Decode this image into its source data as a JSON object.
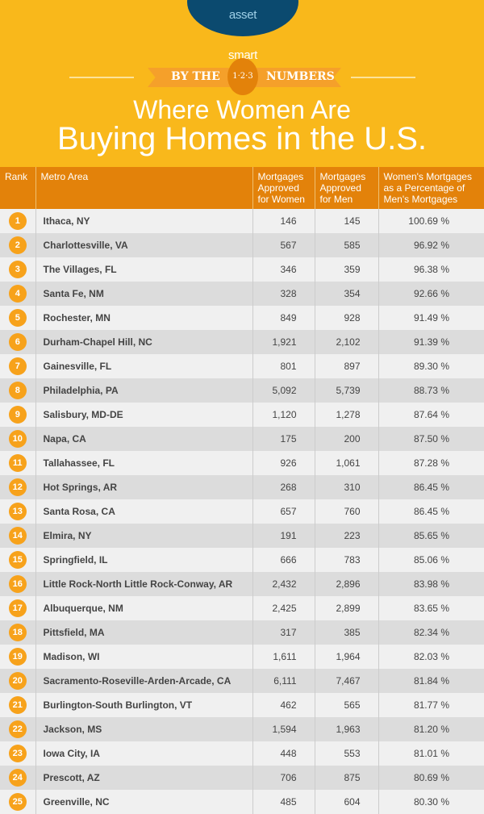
{
  "logo": {
    "text_a": "smart",
    "text_b": "asset"
  },
  "banner": {
    "left": "BY THE",
    "badge": "1·2·3",
    "right": "NUMBERS"
  },
  "title": {
    "line1": "Where Women Are",
    "line2": "Buying Homes in the U.S."
  },
  "colors": {
    "yellow": "#f9b81b",
    "header_orange": "#e3820a",
    "rank_circle": "#f7a21b",
    "logo_blue": "#0b4a6f"
  },
  "table": {
    "headers": [
      "Rank",
      "Metro Area",
      "Mortgages Approved for Women",
      "Mortgages Approved for Men",
      "Women's Mortgages as a Percentage of Men's Mortgages"
    ],
    "rows": [
      [
        "1",
        "Ithaca, NY",
        "146",
        "145",
        "100.69 %"
      ],
      [
        "2",
        "Charlottesville, VA",
        "567",
        "585",
        "96.92 %"
      ],
      [
        "3",
        "The Villages, FL",
        "346",
        "359",
        "96.38 %"
      ],
      [
        "4",
        "Santa Fe, NM",
        "328",
        "354",
        "92.66 %"
      ],
      [
        "5",
        "Rochester, MN",
        "849",
        "928",
        "91.49 %"
      ],
      [
        "6",
        "Durham-Chapel Hill, NC",
        "1,921",
        "2,102",
        "91.39 %"
      ],
      [
        "7",
        "Gainesville, FL",
        "801",
        "897",
        "89.30 %"
      ],
      [
        "8",
        "Philadelphia, PA",
        "5,092",
        "5,739",
        "88.73 %"
      ],
      [
        "9",
        "Salisbury, MD-DE",
        "1,120",
        "1,278",
        "87.64 %"
      ],
      [
        "10",
        "Napa, CA",
        "175",
        "200",
        "87.50 %"
      ],
      [
        "11",
        "Tallahassee, FL",
        "926",
        "1,061",
        "87.28 %"
      ],
      [
        "12",
        "Hot Springs, AR",
        "268",
        "310",
        "86.45 %"
      ],
      [
        "13",
        "Santa Rosa, CA",
        "657",
        "760",
        "86.45 %"
      ],
      [
        "14",
        "Elmira, NY",
        "191",
        "223",
        "85.65 %"
      ],
      [
        "15",
        "Springfield, IL",
        "666",
        "783",
        "85.06 %"
      ],
      [
        "16",
        "Little Rock-North Little Rock-Conway, AR",
        "2,432",
        "2,896",
        "83.98 %"
      ],
      [
        "17",
        "Albuquerque, NM",
        "2,425",
        "2,899",
        "83.65 %"
      ],
      [
        "18",
        "Pittsfield, MA",
        "317",
        "385",
        "82.34 %"
      ],
      [
        "19",
        "Madison, WI",
        "1,611",
        "1,964",
        "82.03 %"
      ],
      [
        "20",
        "Sacramento-Roseville-Arden-Arcade, CA",
        "6,111",
        "7,467",
        "81.84 %"
      ],
      [
        "21",
        "Burlington-South Burlington, VT",
        "462",
        "565",
        "81.77 %"
      ],
      [
        "22",
        "Jackson, MS",
        "1,594",
        "1,963",
        "81.20 %"
      ],
      [
        "23",
        "Iowa City, IA",
        "448",
        "553",
        "81.01 %"
      ],
      [
        "24",
        "Prescott, AZ",
        "706",
        "875",
        "80.69 %"
      ],
      [
        "25",
        "Greenville, NC",
        "485",
        "604",
        "80.30 %"
      ]
    ]
  }
}
